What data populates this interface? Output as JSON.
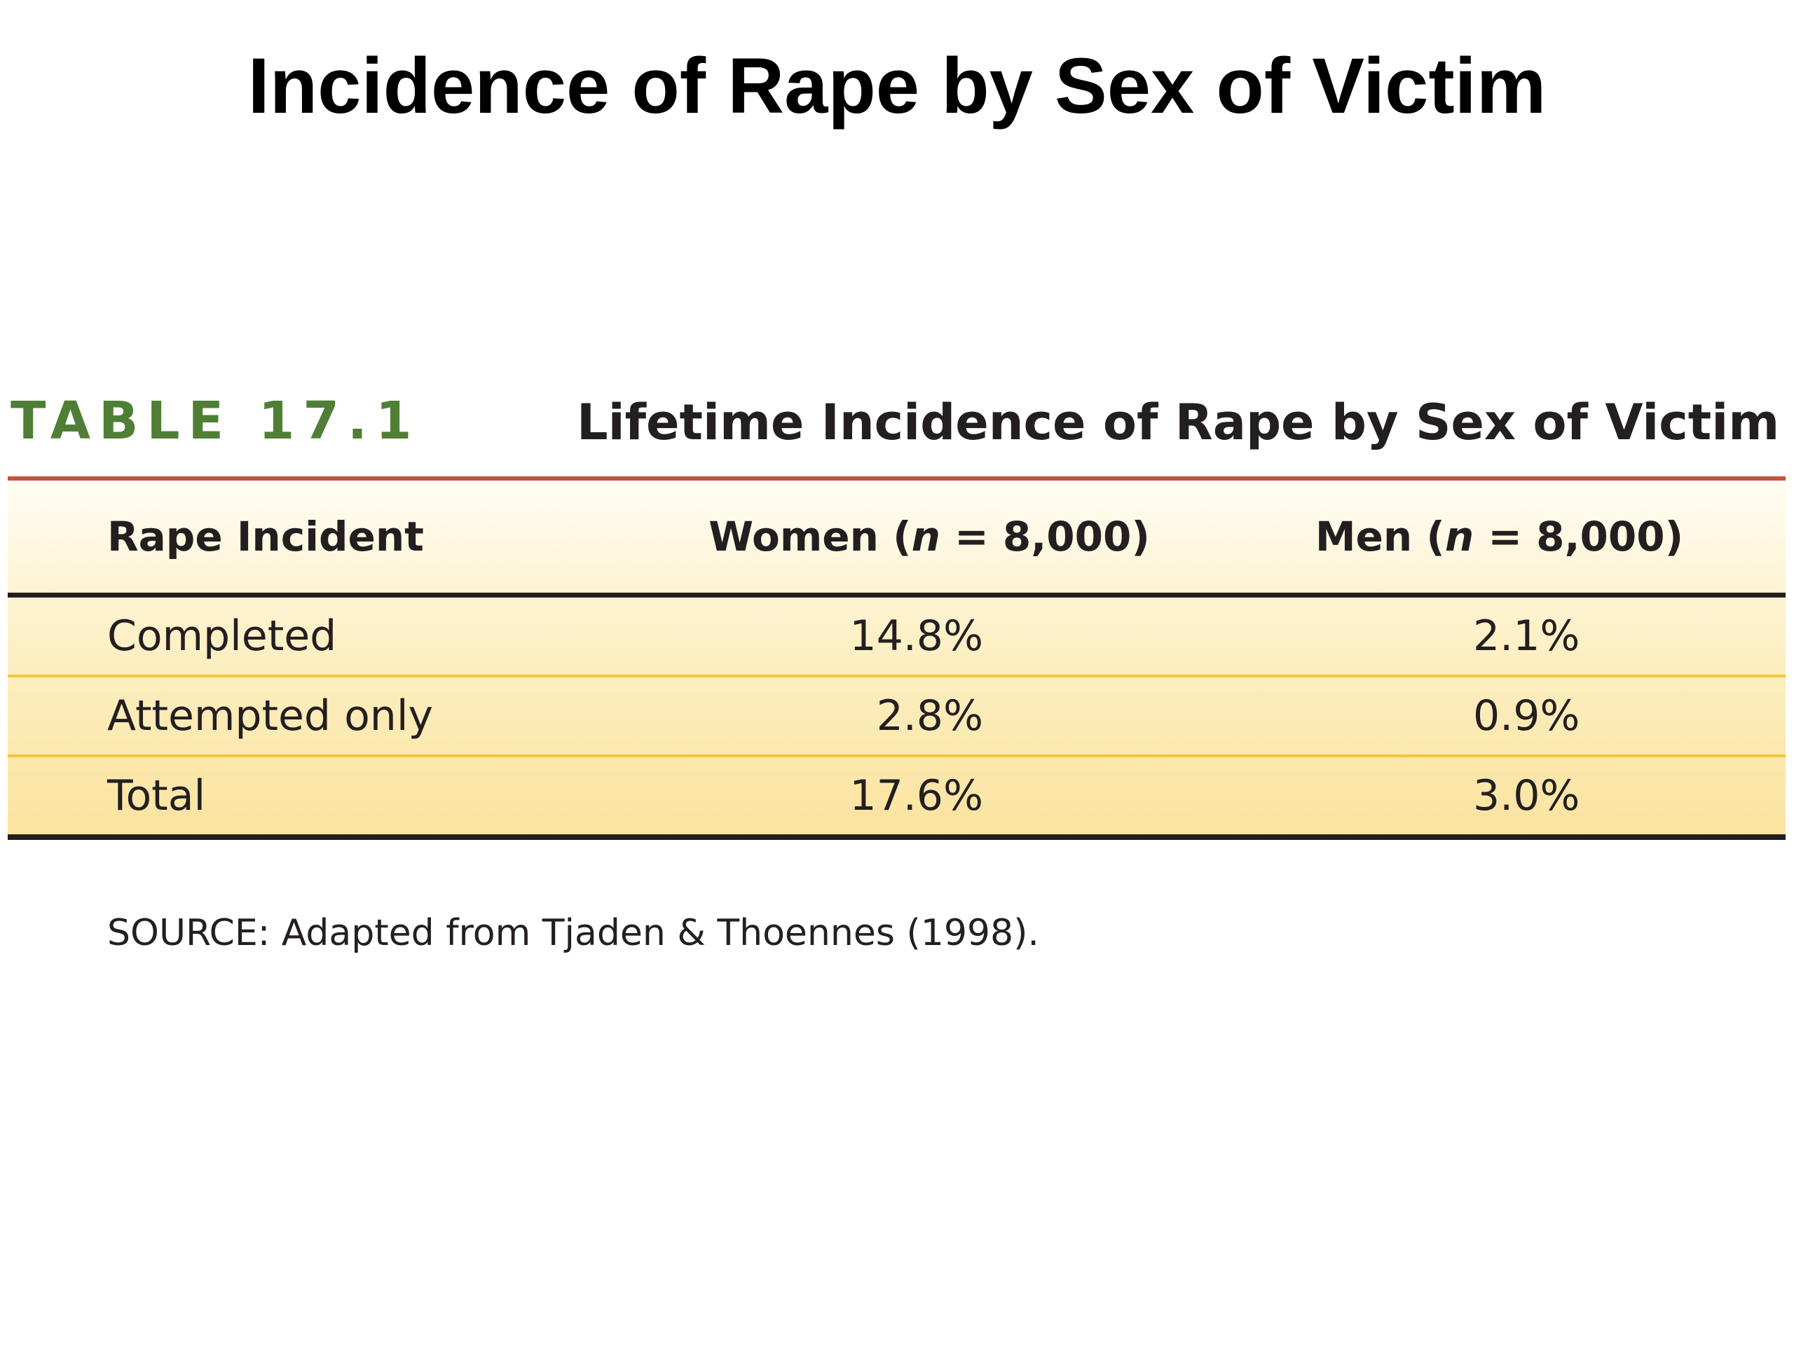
{
  "slide": {
    "title": "Incidence of Rape by Sex of Victim"
  },
  "table": {
    "label": "TABLE 17.1",
    "caption": "Lifetime Incidence of Rape by Sex of Victim",
    "headers": {
      "incident": "Rape Incident",
      "women_prefix": "Women (",
      "women_n": "n",
      "women_suffix": " = 8,000)",
      "men_prefix": "Men (",
      "men_n": "n",
      "men_suffix": " = 8,000)"
    },
    "rows": [
      {
        "incident": "Completed",
        "women": "14.8%",
        "men": "2.1%"
      },
      {
        "incident": "Attempted only",
        "women": "2.8%",
        "men": "0.9%"
      },
      {
        "incident": "Total",
        "women": "17.6%",
        "men": "3.0%"
      }
    ],
    "source": "SOURCE: Adapted from Tjaden & Thoennes (1998)."
  },
  "colors": {
    "label_green": "#4e7f34",
    "top_rule": "#c2553a",
    "row_divider": "#f2c63a",
    "fill_light": "#fffdf4",
    "fill_dark": "#fbe39e"
  }
}
